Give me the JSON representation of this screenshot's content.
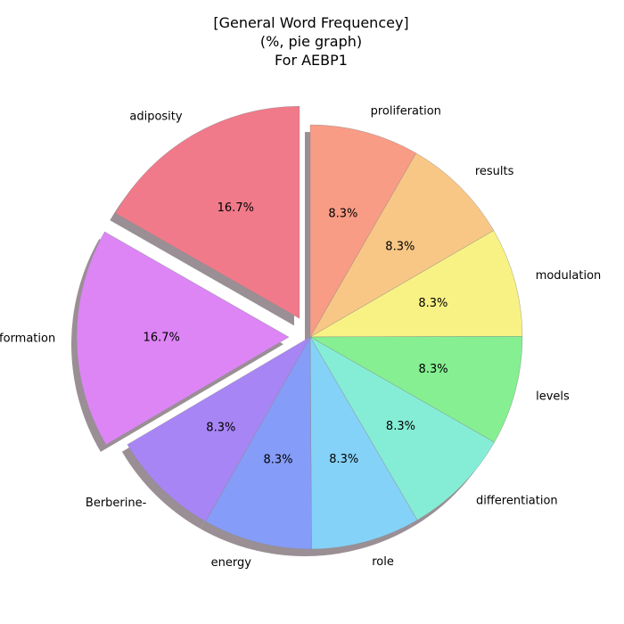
{
  "chart_data": {
    "type": "pie",
    "title_lines": [
      "[General Word Frequencey]",
      "(%, pie graph)",
      "For AEBP1"
    ],
    "slices": [
      {
        "label": "proliferation",
        "value": 8.3,
        "pct_text": "8.3%",
        "color": "#f99c85",
        "explode": false
      },
      {
        "label": "results",
        "value": 8.3,
        "pct_text": "8.3%",
        "color": "#f8c785",
        "explode": false
      },
      {
        "label": "modulation",
        "value": 8.3,
        "pct_text": "8.3%",
        "color": "#f8f285",
        "explode": false
      },
      {
        "label": "levels",
        "value": 8.3,
        "pct_text": "8.3%",
        "color": "#85ef92",
        "explode": false
      },
      {
        "label": "differentiation",
        "value": 8.3,
        "pct_text": "8.3%",
        "color": "#85edd6",
        "explode": false
      },
      {
        "label": "role",
        "value": 8.3,
        "pct_text": "8.3%",
        "color": "#85d2f8",
        "explode": false
      },
      {
        "label": "energy",
        "value": 8.3,
        "pct_text": "8.3%",
        "color": "#859cf8",
        "explode": false
      },
      {
        "label": "Berberine-",
        "value": 8.3,
        "pct_text": "8.3%",
        "color": "#a885f5",
        "explode": false
      },
      {
        "label": "formation",
        "value": 16.7,
        "pct_text": "16.7%",
        "color": "#dd85f5",
        "explode": true
      },
      {
        "label": "adiposity",
        "value": 16.7,
        "pct_text": "16.7%",
        "color": "#f07a8a",
        "explode": true
      }
    ],
    "shadow": true,
    "start": "top",
    "direction": "clockwise"
  }
}
